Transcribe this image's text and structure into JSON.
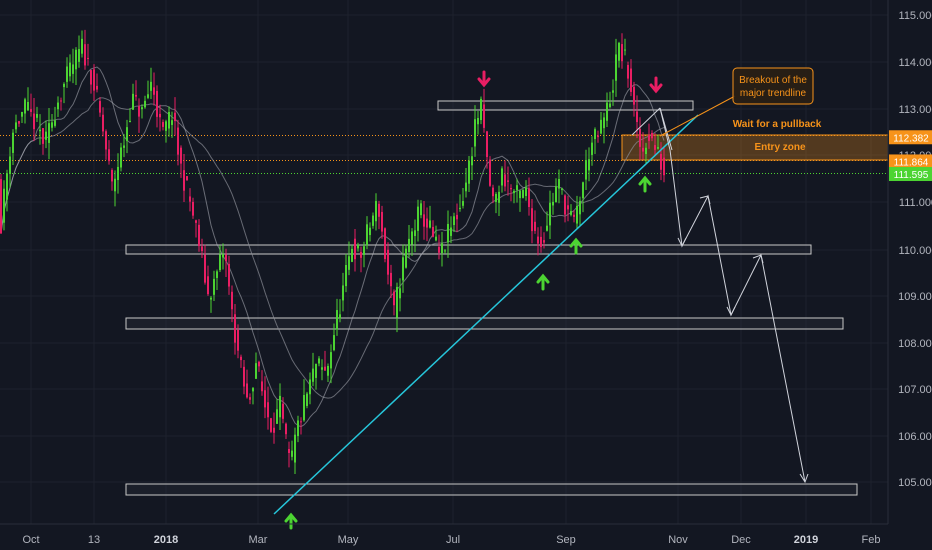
{
  "chart_data": {
    "type": "candlestick",
    "y_axis_ticks": [
      "115.000",
      "114.000",
      "113.000",
      "112.000",
      "111.000",
      "110.000",
      "109.000",
      "108.000",
      "107.000",
      "106.000",
      "105.000"
    ],
    "x_axis_ticks": [
      "Oct",
      "13",
      "2018",
      "Mar",
      "May",
      "Jul",
      "Sep",
      "Nov",
      "Dec",
      "2019",
      "Feb"
    ],
    "price_badges": [
      {
        "value": "112.382",
        "color": "#f7931a"
      },
      {
        "value": "111.864",
        "color": "#f7931a"
      },
      {
        "value": "111.595",
        "color": "#4cd432"
      }
    ],
    "annotations": {
      "breakout_note_line1": "Breakout of the",
      "breakout_note_line2": "major trendline",
      "pullback_note": "Wait for a pullback",
      "entry_zone_label": "Entry zone"
    },
    "support_resistance_levels": [
      113.0,
      110.0,
      108.5,
      104.85
    ],
    "entry_zone": [
      111.85,
      112.4
    ],
    "series_color_up": "#4cd432",
    "series_color_down": "#e91e63",
    "trendline_color": "#26c6da",
    "projected_path_color": "#d1d4dc",
    "accent_color": "#f7931a"
  }
}
